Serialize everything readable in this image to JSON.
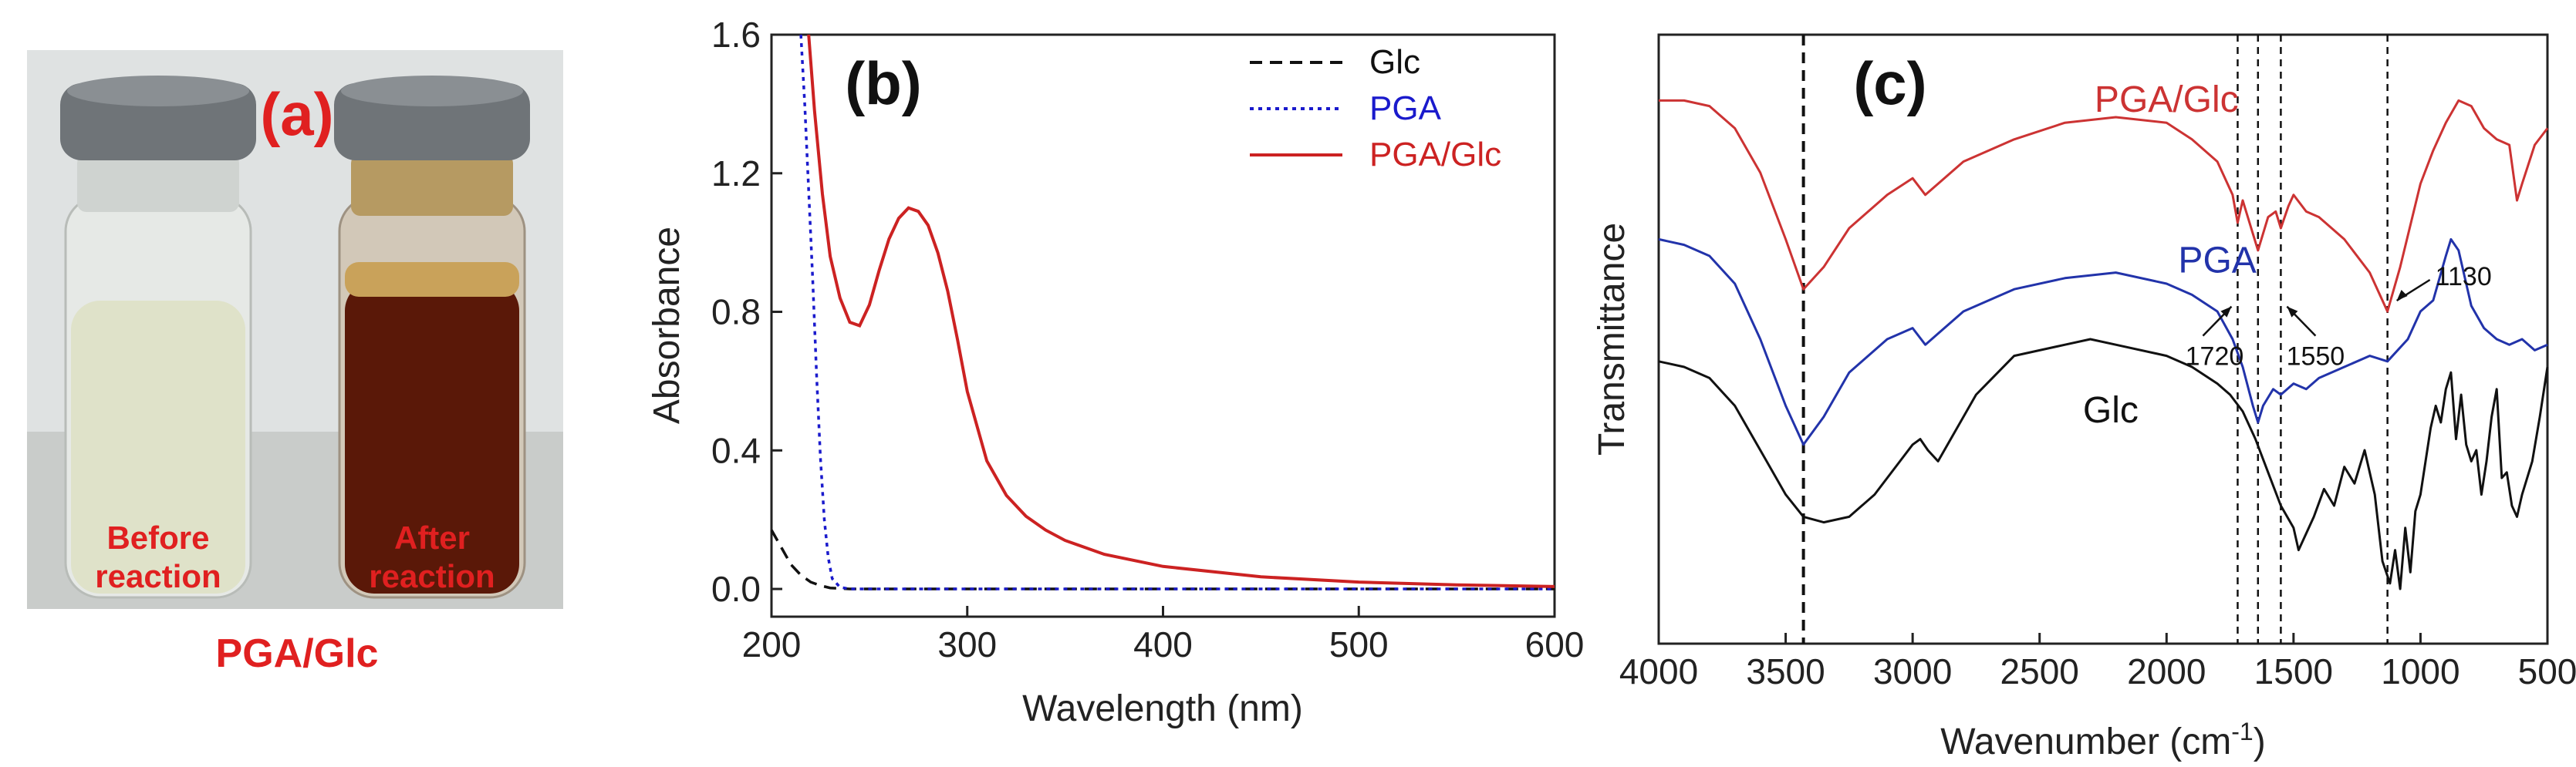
{
  "panel_a": {
    "label": "(a)",
    "left_vial": {
      "line1": "Before",
      "line2": "reaction"
    },
    "right_vial": {
      "line1": "After",
      "line2": "reaction"
    },
    "caption": "PGA/Glc",
    "colors": {
      "label": "#e02020",
      "cap": "#6f7478",
      "clear_liquid": "#dfe2c9",
      "dark_liquid": "#5a1808",
      "foam": "#c9a25a"
    }
  },
  "chart_data": [
    {
      "panel": "(b)",
      "type": "line",
      "title": "",
      "xlabel": "Wavelength (nm)",
      "ylabel": "Absorbance",
      "xlim": [
        200,
        600
      ],
      "ylim": [
        -0.08,
        1.6
      ],
      "xticks": [
        200,
        300,
        400,
        500,
        600
      ],
      "xtick_labels": [
        "200",
        "300",
        "400",
        "500",
        "600"
      ],
      "yticks": [
        0.0,
        0.4,
        0.8,
        1.2,
        1.6
      ],
      "ytick_labels": [
        "0.0",
        "0.4",
        "0.8",
        "1.2",
        "1.6"
      ],
      "legend_position": "top-right",
      "series": [
        {
          "name": "Glc",
          "color": "#111111",
          "dash": "dashed",
          "x": [
            200,
            205,
            210,
            215,
            220,
            225,
            230,
            240,
            300,
            400,
            500,
            600
          ],
          "y": [
            0.17,
            0.12,
            0.07,
            0.04,
            0.02,
            0.01,
            0.003,
            0.0,
            0.0,
            0.0,
            0.0,
            0.0
          ]
        },
        {
          "name": "PGA",
          "color": "#1a1acc",
          "dash": "dotted",
          "x": [
            215,
            217,
            219,
            221,
            223,
            225,
            227,
            229,
            231,
            235,
            240,
            300,
            400,
            500,
            600
          ],
          "y": [
            1.6,
            1.4,
            1.15,
            0.9,
            0.62,
            0.38,
            0.2,
            0.09,
            0.03,
            0.005,
            0.0,
            0.0,
            0.0,
            0.0,
            0.0
          ]
        },
        {
          "name": "PGA/Glc",
          "color": "#cc2222",
          "dash": "solid",
          "x": [
            219,
            222,
            226,
            230,
            235,
            240,
            245,
            250,
            255,
            260,
            265,
            270,
            275,
            280,
            285,
            290,
            295,
            300,
            310,
            320,
            330,
            340,
            350,
            370,
            400,
            450,
            500,
            550,
            600
          ],
          "y": [
            1.6,
            1.38,
            1.14,
            0.96,
            0.84,
            0.77,
            0.76,
            0.82,
            0.92,
            1.01,
            1.07,
            1.1,
            1.09,
            1.05,
            0.97,
            0.86,
            0.72,
            0.57,
            0.37,
            0.27,
            0.21,
            0.17,
            0.14,
            0.1,
            0.065,
            0.035,
            0.02,
            0.012,
            0.007
          ]
        }
      ]
    },
    {
      "panel": "(c)",
      "type": "line",
      "title": "",
      "xlabel_main": "Wavenumber (cm",
      "xlabel_sup": "-1",
      "xlabel_close": ")",
      "ylabel": "Transmittance",
      "xlim": [
        4000,
        500
      ],
      "ylim": [
        0,
        100
      ],
      "xticks": [
        4000,
        3500,
        3000,
        2500,
        2000,
        1500,
        1000,
        500
      ],
      "xtick_labels": [
        "4000",
        "3500",
        "3000",
        "2500",
        "2000",
        "1500",
        "1000",
        "500"
      ],
      "reference_lines_cm": [
        3430,
        1720,
        1640,
        1550,
        1130
      ],
      "annotations": [
        {
          "text": "1720",
          "x": 1720,
          "y": 52
        },
        {
          "text": "1550",
          "x": 1550,
          "y": 52
        },
        {
          "text": "1130",
          "x": 1130,
          "y": 60
        }
      ],
      "series": [
        {
          "name": "PGA/Glc",
          "color": "#cc3333",
          "x": [
            4000,
            3900,
            3800,
            3700,
            3600,
            3500,
            3430,
            3350,
            3250,
            3100,
            3000,
            2950,
            2900,
            2800,
            2600,
            2400,
            2200,
            2000,
            1900,
            1800,
            1740,
            1720,
            1700,
            1680,
            1640,
            1600,
            1570,
            1550,
            1520,
            1500,
            1450,
            1400,
            1300,
            1200,
            1130,
            1080,
            1000,
            950,
            900,
            850,
            800,
            750,
            700,
            650,
            620,
            600,
            550,
            500
          ],
          "y": [
            93,
            93,
            92,
            88,
            80,
            68,
            59,
            63,
            70,
            76,
            79,
            76,
            78,
            82,
            86,
            89,
            90,
            89,
            86,
            82,
            76,
            71,
            75,
            72,
            66,
            72,
            73,
            70,
            74,
            76,
            73,
            72,
            68,
            62,
            55,
            63,
            78,
            84,
            89,
            93,
            92,
            88,
            86,
            85,
            75,
            78,
            85,
            88
          ]
        },
        {
          "name": "PGA",
          "color": "#2233aa",
          "x": [
            4000,
            3900,
            3800,
            3700,
            3600,
            3500,
            3430,
            3350,
            3250,
            3100,
            3000,
            2950,
            2900,
            2800,
            2600,
            2400,
            2200,
            2000,
            1900,
            1800,
            1740,
            1700,
            1660,
            1640,
            1620,
            1580,
            1550,
            1500,
            1450,
            1400,
            1300,
            1200,
            1130,
            1050,
            1000,
            950,
            900,
            880,
            850,
            800,
            750,
            700,
            650,
            600,
            550,
            500
          ],
          "y": [
            68,
            67,
            65,
            60,
            50,
            38,
            31,
            36,
            44,
            50,
            52,
            49,
            51,
            55,
            59,
            61,
            62,
            60,
            58,
            55,
            50,
            45,
            38,
            35,
            38,
            41,
            40,
            42,
            41,
            43,
            45,
            47,
            46,
            50,
            55,
            57,
            65,
            68,
            66,
            56,
            52,
            50,
            49,
            50,
            48,
            49
          ]
        },
        {
          "name": "Glc",
          "color": "#111111",
          "x": [
            4000,
            3900,
            3800,
            3700,
            3600,
            3500,
            3430,
            3350,
            3250,
            3150,
            3050,
            3000,
            2970,
            2940,
            2900,
            2850,
            2750,
            2600,
            2400,
            2300,
            2200,
            2000,
            1900,
            1800,
            1750,
            1700,
            1650,
            1600,
            1550,
            1500,
            1480,
            1460,
            1420,
            1380,
            1340,
            1300,
            1260,
            1220,
            1180,
            1150,
            1120,
            1100,
            1080,
            1060,
            1040,
            1020,
            1000,
            980,
            960,
            940,
            920,
            900,
            880,
            860,
            840,
            820,
            800,
            780,
            760,
            740,
            720,
            700,
            680,
            660,
            640,
            620,
            600,
            560,
            530,
            500
          ],
          "y": [
            46,
            45,
            43,
            38,
            30,
            22,
            18,
            17,
            18,
            22,
            28,
            31,
            32,
            30,
            28,
            32,
            40,
            47,
            49,
            50,
            49,
            47,
            45,
            42,
            40,
            37,
            32,
            26,
            20,
            16,
            12,
            14,
            18,
            23,
            20,
            27,
            24,
            30,
            22,
            10,
            6,
            12,
            5,
            16,
            8,
            19,
            22,
            28,
            34,
            38,
            35,
            41,
            44,
            32,
            40,
            31,
            28,
            30,
            22,
            28,
            36,
            41,
            25,
            26,
            20,
            18,
            22,
            28,
            36,
            45
          ]
        }
      ],
      "curve_labels": [
        {
          "text": "PGA/Glc",
          "color": "#cc3333",
          "x": 2000,
          "y": 91
        },
        {
          "text": "PGA",
          "color": "#2233aa",
          "x": 1800,
          "y": 62
        },
        {
          "text": "Glc",
          "color": "#111111",
          "x": 2220,
          "y": 35
        }
      ]
    }
  ]
}
